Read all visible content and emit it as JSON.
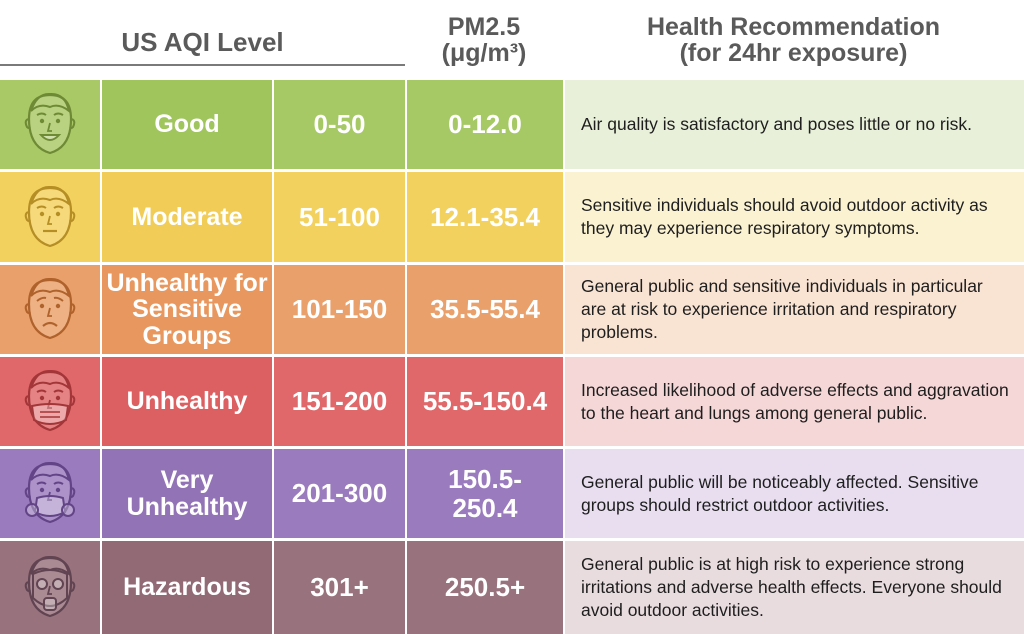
{
  "header": {
    "aqi_level": "US AQI Level",
    "pm_line1": "PM2.5",
    "pm_line2": "(μg/m³)",
    "rec_line1": "Health Recommendation",
    "rec_line2": "(for 24hr exposure)"
  },
  "rows": [
    {
      "icon": "smiling-face-icon",
      "level": "Good",
      "aqi": "0-50",
      "pm": "0-12.0",
      "recommendation": "Air quality is satisfactory and poses little or no risk.",
      "colors": {
        "face": "#a9c866",
        "level": "#9fc55c",
        "aqi": "#a6c965",
        "pm": "#a6c965",
        "rec": "#e8f0da",
        "stroke": "#6f8a35"
      }
    },
    {
      "icon": "neutral-face-icon",
      "level": "Moderate",
      "aqi": "51-100",
      "pm": "12.1-35.4",
      "recommendation": "Sensitive individuals should avoid outdoor activity as they may experience respiratory symptoms.",
      "colors": {
        "face": "#f3d15f",
        "level": "#f1cd57",
        "aqi": "#f3d15f",
        "pm": "#f3d15f",
        "rec": "#fbf2d2",
        "stroke": "#b58e25"
      }
    },
    {
      "icon": "frowning-face-icon",
      "level": "Unhealthy for Sensitive Groups",
      "aqi": "101-150",
      "pm": "35.5-55.4",
      "recommendation": "General public and sensitive individuals in particular are at risk to experience irritation and respiratory problems.",
      "colors": {
        "face": "#eaa06a",
        "level": "#e8985f",
        "aqi": "#eaa06a",
        "pm": "#eaa06a",
        "rec": "#f9e3d3",
        "stroke": "#b0622c"
      }
    },
    {
      "icon": "face-mask-icon",
      "level": "Unhealthy",
      "aqi": "151-200",
      "pm": "55.5-150.4",
      "recommendation": "Increased likelihood of adverse effects and aggravation to the heart and lungs among general public.",
      "colors": {
        "face": "#e0686a",
        "level": "#dc5f62",
        "aqi": "#e0686a",
        "pm": "#e0686a",
        "rec": "#f6d7d7",
        "stroke": "#a33638"
      }
    },
    {
      "icon": "respirator-mask-icon",
      "level": "Very Unhealthy",
      "aqi": "201-300",
      "pm": "150.5-250.4",
      "recommendation": "General public will be noticeably affected. Sensitive groups should restrict outdoor activities.",
      "colors": {
        "face": "#9a7bbd",
        "level": "#9273b6",
        "aqi": "#9a7bbd",
        "pm": "#9a7bbd",
        "rec": "#e8def0",
        "stroke": "#624487"
      }
    },
    {
      "icon": "gas-mask-icon",
      "level": "Hazardous",
      "aqi": "301+",
      "pm": "250.5+",
      "recommendation": "General public is at high risk to experience strong irritations and adverse health effects. Everyone should avoid outdoor activities.",
      "colors": {
        "face": "#98727d",
        "level": "#916a76",
        "aqi": "#98727d",
        "pm": "#98727d",
        "rec": "#e8dcdf",
        "stroke": "#614451"
      }
    }
  ]
}
